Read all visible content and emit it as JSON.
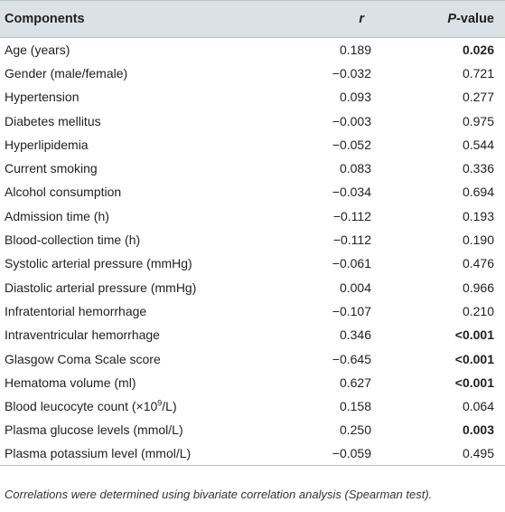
{
  "table": {
    "headers": {
      "components": "Components",
      "r": "r",
      "p_italic": "P",
      "p_suffix": "-value"
    },
    "rows": [
      {
        "name": "Age (years)",
        "r": "0.189",
        "p": "0.026",
        "sig": true
      },
      {
        "name": "Gender (male/female)",
        "r": "−0.032",
        "p": "0.721",
        "sig": false
      },
      {
        "name": "Hypertension",
        "r": "0.093",
        "p": "0.277",
        "sig": false
      },
      {
        "name": "Diabetes mellitus",
        "r": "−0.003",
        "p": "0.975",
        "sig": false
      },
      {
        "name": "Hyperlipidemia",
        "r": "−0.052",
        "p": "0.544",
        "sig": false
      },
      {
        "name": "Current smoking",
        "r": "0.083",
        "p": "0.336",
        "sig": false
      },
      {
        "name": "Alcohol consumption",
        "r": "−0.034",
        "p": "0.694",
        "sig": false
      },
      {
        "name": "Admission time (h)",
        "r": "−0.112",
        "p": "0.193",
        "sig": false
      },
      {
        "name": "Blood-collection time (h)",
        "r": "−0.112",
        "p": "0.190",
        "sig": false
      },
      {
        "name": "Systolic arterial pressure (mmHg)",
        "r": "−0.061",
        "p": "0.476",
        "sig": false
      },
      {
        "name": "Diastolic arterial pressure (mmHg)",
        "r": "0.004",
        "p": "0.966",
        "sig": false
      },
      {
        "name": "Infratentorial hemorrhage",
        "r": "−0.107",
        "p": "0.210",
        "sig": false
      },
      {
        "name": "Intraventricular hemorrhage",
        "r": "0.346",
        "p": "<0.001",
        "sig": true
      },
      {
        "name": "Glasgow Coma Scale score",
        "r": "−0.645",
        "p": "<0.001",
        "sig": true
      },
      {
        "name": "Hematoma volume (ml)",
        "r": "0.627",
        "p": "<0.001",
        "sig": true
      },
      {
        "name_prefix": "Blood leucocyte count (×10",
        "name_sup": "9",
        "name_suffix": "/L)",
        "r": "0.158",
        "p": "0.064",
        "sig": false
      },
      {
        "name": "Plasma glucose levels (mmol/L)",
        "r": "0.250",
        "p": "0.003",
        "sig": true
      },
      {
        "name": "Plasma potassium level (mmol/L)",
        "r": "−0.059",
        "p": "0.495",
        "sig": false
      }
    ]
  },
  "footnote": "Correlations were determined using bivariate correlation analysis (Spearman test).",
  "colors": {
    "header_bg": "#dbe1e4",
    "rule": "#b9c3c8",
    "text": "#222222"
  }
}
